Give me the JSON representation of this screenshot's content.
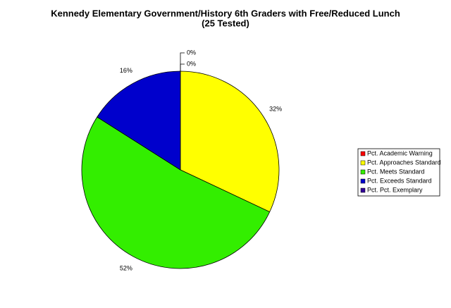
{
  "chart_data": {
    "type": "pie",
    "title": "Kennedy Elementary Government/History 6th Graders with Free/Reduced Lunch",
    "subtitle": "(25 Tested)",
    "categories": [
      "Pct. Academic Warning",
      "Pct. Approaches Standard",
      "Pct. Meets Standard",
      "Pct. Exceeds Standard",
      "Pct. Pct. Exemplary"
    ],
    "values": [
      0,
      32,
      52,
      16,
      0
    ],
    "value_labels": [
      "0%",
      "32%",
      "52%",
      "16%",
      "0%"
    ],
    "colors": [
      "#ff0000",
      "#ffff00",
      "#33ee00",
      "#0000cc",
      "#330099"
    ],
    "legend": "right"
  }
}
